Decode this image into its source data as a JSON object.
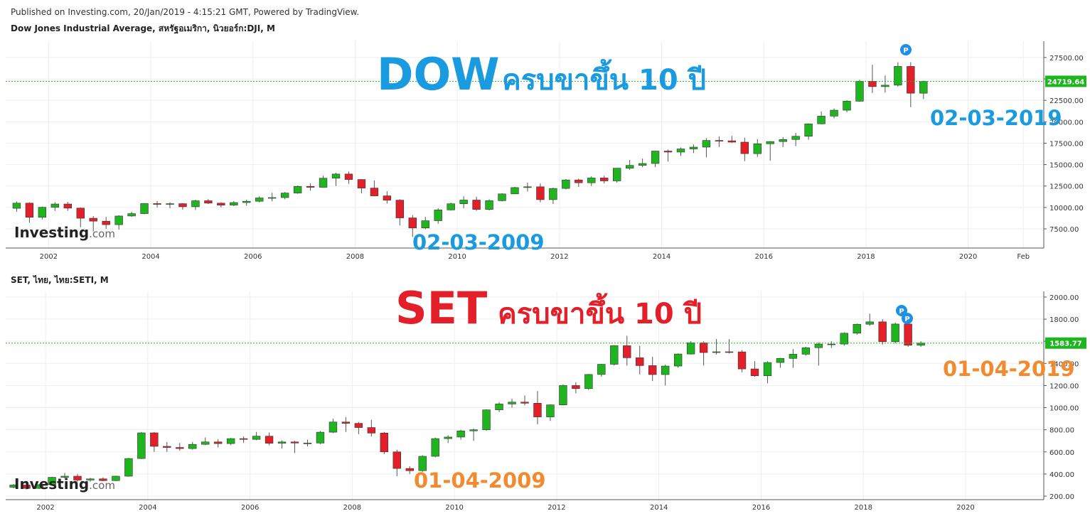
{
  "header": "Published on Investing.com, 20/Jan/2019 - 4:15:21 GMT, Powered by TradingView.",
  "chart_data": [
    {
      "type": "candlestick",
      "title": "Dow Jones Industrial Average, สหรัฐอเมริกา, นิวยอร์ก:DJI, M",
      "x": [
        2001.25,
        2001.5,
        2001.75,
        2002,
        2002.25,
        2002.5,
        2002.75,
        2003,
        2003.25,
        2003.5,
        2003.75,
        2004,
        2004.25,
        2004.5,
        2004.75,
        2005,
        2005.25,
        2005.5,
        2005.75,
        2006,
        2006.25,
        2006.5,
        2006.75,
        2007,
        2007.25,
        2007.5,
        2007.75,
        2008,
        2008.25,
        2008.5,
        2008.75,
        2009,
        2009.25,
        2009.5,
        2009.75,
        2010,
        2010.25,
        2010.5,
        2010.75,
        2011,
        2011.25,
        2011.5,
        2011.75,
        2012,
        2012.25,
        2012.5,
        2012.75,
        2013,
        2013.25,
        2013.5,
        2013.75,
        2014,
        2014.25,
        2014.5,
        2014.75,
        2015,
        2015.25,
        2015.5,
        2015.75,
        2016,
        2016.25,
        2016.5,
        2016.75,
        2017,
        2017.25,
        2017.5,
        2017.75,
        2018,
        2018.25,
        2018.5,
        2018.75,
        2019
      ],
      "open": [
        9900,
        10500,
        8850,
        10020,
        10400,
        9920,
        8740,
        8400,
        7990,
        9000,
        9280,
        10450,
        10360,
        10440,
        10080,
        10780,
        10500,
        10270,
        10570,
        10720,
        11110,
        11150,
        11680,
        12460,
        12350,
        13410,
        13900,
        13260,
        12260,
        11350,
        10850,
        8780,
        7600,
        8450,
        9710,
        10430,
        10860,
        9770,
        10790,
        11580,
        12320,
        12410,
        10910,
        12220,
        13210,
        12880,
        13440,
        13100,
        14580,
        14910,
        15130,
        16580,
        16460,
        16830,
        17040,
        17820,
        17780,
        17620,
        16280,
        17430,
        17690,
        17930,
        18310,
        19760,
        20660,
        21350,
        22400,
        24720,
        24100,
        24270,
        26460,
        23330
      ],
      "high": [
        10700,
        10600,
        10100,
        10600,
        10650,
        10000,
        9000,
        8900,
        9100,
        9500,
        10500,
        10750,
        10600,
        10500,
        10900,
        10980,
        10600,
        10750,
        10900,
        11300,
        11700,
        11800,
        12550,
        12800,
        13700,
        14050,
        14200,
        13300,
        13150,
        11900,
        10950,
        9100,
        8900,
        9900,
        10550,
        11300,
        11250,
        10950,
        11650,
        12400,
        12900,
        12800,
        12300,
        13300,
        13350,
        13650,
        13700,
        14600,
        15550,
        15700,
        16600,
        16750,
        17000,
        17350,
        18100,
        18300,
        18350,
        18150,
        17980,
        17750,
        18200,
        18700,
        19800,
        21200,
        21550,
        22500,
        24900,
        26650,
        25400,
        26950,
        26950,
        24800
      ],
      "low": [
        9500,
        8200,
        8600,
        9600,
        9600,
        7700,
        7200,
        7500,
        7400,
        8900,
        9200,
        10000,
        9900,
        9750,
        9700,
        10400,
        10000,
        10150,
        10200,
        10600,
        10700,
        10950,
        11600,
        11950,
        12300,
        12500,
        12750,
        11650,
        11300,
        10450,
        7900,
        6550,
        7450,
        8100,
        9650,
        9900,
        9600,
        9650,
        10700,
        11550,
        11850,
        10600,
        10400,
        12100,
        12400,
        12500,
        12800,
        12900,
        14400,
        14700,
        14700,
        15350,
        16000,
        16350,
        15850,
        17050,
        17550,
        15400,
        15900,
        15450,
        17050,
        17150,
        17900,
        19700,
        20400,
        21100,
        22350,
        23350,
        23400,
        24100,
        21700,
        22650
      ],
      "close": [
        10500,
        8850,
        10020,
        10400,
        9920,
        8740,
        8400,
        7990,
        9000,
        9280,
        10450,
        10360,
        10440,
        10080,
        10780,
        10500,
        10270,
        10570,
        10720,
        11110,
        11150,
        11680,
        12460,
        12350,
        13410,
        13900,
        13260,
        12260,
        11350,
        10850,
        8780,
        7600,
        8450,
        9710,
        10430,
        10860,
        9770,
        10790,
        11580,
        12320,
        12410,
        10910,
        12220,
        13210,
        12880,
        13440,
        13100,
        14580,
        14910,
        15130,
        16580,
        16460,
        16830,
        17040,
        17820,
        17780,
        17620,
        16280,
        17430,
        17690,
        17930,
        18310,
        19760,
        20660,
        21350,
        22400,
        24720,
        24100,
        24270,
        26460,
        23330,
        24700
      ],
      "up_color": "#1fb51f",
      "down_color": "#e3202a",
      "xlim": [
        2001.16,
        2021.48
      ],
      "ylim": [
        5260,
        29400
      ],
      "xticks": [
        2002,
        2004,
        2006,
        2008,
        2010,
        2012,
        2014,
        2016,
        2018,
        2020,
        {
          "value": 2021.08,
          "label": "Feb"
        }
      ],
      "yticks": [
        {
          "value": 7500,
          "label": "7500.00"
        },
        {
          "value": 10000,
          "label": "10000.00"
        },
        {
          "value": 12500,
          "label": "12500.00"
        },
        {
          "value": 15000,
          "label": "15000.00"
        },
        {
          "value": 17500,
          "label": "17500.00"
        },
        {
          "value": 20000,
          "label": "20000.00"
        },
        {
          "value": 22500,
          "label": "22500.00"
        },
        {
          "value": 25000,
          "label": "25000.00"
        },
        {
          "value": 27500,
          "label": "27500.00"
        }
      ],
      "grid": true,
      "last_price": 24719.64,
      "price_line_color": "#1fb51f",
      "event_labels": [
        "P"
      ],
      "watermark": "Investing",
      "watermark_suffix": ".com",
      "annotations": [
        {
          "text": "DOW",
          "color": "#1a9be0"
        },
        {
          "text": "ครบขาขึ้น 10 ปี",
          "color": "#1a9be0"
        },
        {
          "text": "02-03-2019",
          "color": "#1a9be0"
        },
        {
          "text": "02-03-2009",
          "color": "#1a9be0"
        }
      ]
    },
    {
      "type": "candlestick",
      "title": "SET, ไทย, ไทย:SETI, M",
      "x": [
        2001.25,
        2001.5,
        2001.75,
        2002,
        2002.25,
        2002.5,
        2002.75,
        2003,
        2003.25,
        2003.5,
        2003.75,
        2004,
        2004.25,
        2004.5,
        2004.75,
        2005,
        2005.25,
        2005.5,
        2005.75,
        2006,
        2006.25,
        2006.5,
        2006.75,
        2007,
        2007.25,
        2007.5,
        2007.75,
        2008,
        2008.25,
        2008.5,
        2008.75,
        2009,
        2009.25,
        2009.5,
        2009.75,
        2010,
        2010.25,
        2010.5,
        2010.75,
        2011,
        2011.25,
        2011.5,
        2011.75,
        2012,
        2012.25,
        2012.5,
        2012.75,
        2013,
        2013.25,
        2013.5,
        2013.75,
        2014,
        2014.25,
        2014.5,
        2014.75,
        2015,
        2015.25,
        2015.5,
        2015.75,
        2016,
        2016.25,
        2016.5,
        2016.75,
        2017,
        2017.25,
        2017.5,
        2017.75,
        2018,
        2018.25,
        2018.5,
        2018.75,
        2019
      ],
      "open": [
        280,
        300,
        270,
        303,
        370,
        380,
        345,
        356,
        340,
        380,
        540,
        772,
        650,
        640,
        630,
        668,
        690,
        675,
        720,
        713,
        742,
        678,
        690,
        680,
        680,
        778,
        870,
        858,
        820,
        770,
        600,
        450,
        430,
        560,
        720,
        734,
        790,
        800,
        980,
        1033,
        1050,
        1040,
        916,
        1025,
        1200,
        1172,
        1300,
        1392,
        1560,
        1451,
        1380,
        1299,
        1376,
        1485,
        1586,
        1498,
        1505,
        1504,
        1350,
        1288,
        1408,
        1445,
        1483,
        1542,
        1575,
        1575,
        1673,
        1754,
        1776,
        1596,
        1756,
        1564
      ],
      "high": [
        310,
        320,
        310,
        375,
        410,
        400,
        365,
        370,
        385,
        545,
        780,
        780,
        690,
        680,
        690,
        730,
        715,
        725,
        740,
        780,
        775,
        705,
        700,
        710,
        790,
        900,
        915,
        870,
        890,
        780,
        620,
        470,
        570,
        730,
        750,
        800,
        810,
        985,
        1050,
        1080,
        1110,
        1150,
        1030,
        1210,
        1230,
        1305,
        1395,
        1565,
        1650,
        1560,
        1460,
        1390,
        1490,
        1600,
        1600,
        1620,
        1620,
        1520,
        1420,
        1420,
        1450,
        1530,
        1550,
        1590,
        1600,
        1680,
        1760,
        1850,
        1800,
        1770,
        1770,
        1600
      ],
      "low": [
        270,
        260,
        265,
        300,
        360,
        330,
        330,
        335,
        335,
        375,
        535,
        600,
        600,
        610,
        620,
        660,
        640,
        660,
        680,
        705,
        660,
        630,
        590,
        650,
        670,
        770,
        780,
        760,
        740,
        580,
        380,
        400,
        420,
        550,
        680,
        710,
        700,
        790,
        960,
        1000,
        1020,
        850,
        880,
        1020,
        1130,
        1160,
        1280,
        1380,
        1380,
        1300,
        1240,
        1200,
        1360,
        1480,
        1380,
        1480,
        1490,
        1320,
        1280,
        1220,
        1360,
        1360,
        1470,
        1380,
        1540,
        1560,
        1660,
        1740,
        1570,
        1580,
        1550,
        1550
      ],
      "close": [
        300,
        270,
        303,
        370,
        380,
        345,
        356,
        340,
        380,
        540,
        772,
        650,
        640,
        630,
        668,
        690,
        675,
        720,
        713,
        742,
        678,
        690,
        680,
        680,
        778,
        870,
        858,
        820,
        770,
        600,
        450,
        430,
        560,
        720,
        734,
        790,
        800,
        980,
        1033,
        1050,
        1040,
        916,
        1025,
        1200,
        1172,
        1300,
        1392,
        1560,
        1451,
        1380,
        1299,
        1376,
        1485,
        1586,
        1498,
        1505,
        1504,
        1350,
        1288,
        1408,
        1445,
        1483,
        1542,
        1575,
        1575,
        1673,
        1754,
        1776,
        1596,
        1756,
        1564,
        1584
      ],
      "up_color": "#1fb51f",
      "down_color": "#e3202a",
      "xlim": [
        2001.22,
        2021.53
      ],
      "ylim": [
        168,
        2051
      ],
      "xticks": [
        2002,
        2004,
        2006,
        2008,
        2010,
        2012,
        2014,
        2016,
        2018,
        2020
      ],
      "yticks": [
        {
          "value": 200,
          "label": "200.00"
        },
        {
          "value": 400,
          "label": "400.00"
        },
        {
          "value": 600,
          "label": "600.00"
        },
        {
          "value": 800,
          "label": "800.00"
        },
        {
          "value": 1000,
          "label": "1000.00"
        },
        {
          "value": 1200,
          "label": "1200.00"
        },
        {
          "value": 1400,
          "label": "1400.00"
        },
        {
          "value": 1600,
          "label": "1600.00"
        },
        {
          "value": 1800,
          "label": "1800.00"
        },
        {
          "value": 2000,
          "label": "2000.00"
        }
      ],
      "grid": true,
      "last_price": 1583.77,
      "price_line_color": "#1fb51f",
      "event_labels": [
        "P",
        "P"
      ],
      "watermark": "Investing",
      "watermark_suffix": ".com",
      "annotations": [
        {
          "text": "SET",
          "color": "#e3202a"
        },
        {
          "text": "ครบขาขึ้น 10 ปี",
          "color": "#e3202a"
        },
        {
          "text": "01-04-2019",
          "color": "#f28a30"
        },
        {
          "text": "01-04-2009",
          "color": "#f28a30"
        }
      ]
    }
  ]
}
